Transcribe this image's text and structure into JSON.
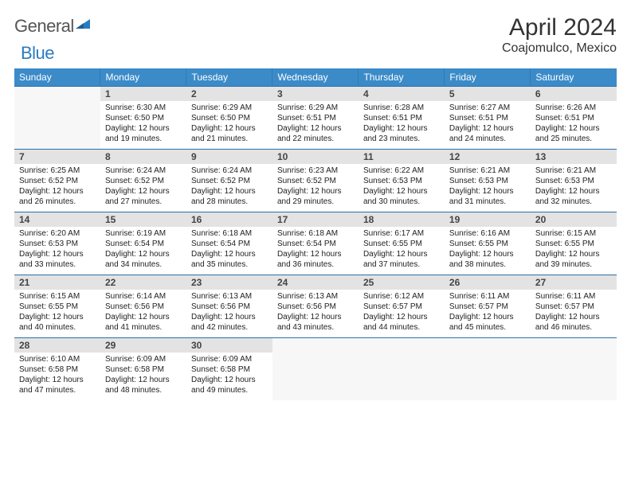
{
  "logo": {
    "general": "General",
    "blue": "Blue"
  },
  "title": "April 2024",
  "location": "Coajomulco, Mexico",
  "colors": {
    "header_bg": "#3b8bc9",
    "header_text": "#ffffff",
    "daynum_bg": "#e3e3e3",
    "row_border": "#2b6fa8",
    "empty_bg": "#f7f7f7",
    "body_text": "#222222"
  },
  "day_headers": [
    "Sunday",
    "Monday",
    "Tuesday",
    "Wednesday",
    "Thursday",
    "Friday",
    "Saturday"
  ],
  "weeks": [
    {
      "nums": [
        "",
        "1",
        "2",
        "3",
        "4",
        "5",
        "6"
      ],
      "cells": [
        null,
        {
          "sr": "Sunrise: 6:30 AM",
          "ss": "Sunset: 6:50 PM",
          "dl1": "Daylight: 12 hours",
          "dl2": "and 19 minutes."
        },
        {
          "sr": "Sunrise: 6:29 AM",
          "ss": "Sunset: 6:50 PM",
          "dl1": "Daylight: 12 hours",
          "dl2": "and 21 minutes."
        },
        {
          "sr": "Sunrise: 6:29 AM",
          "ss": "Sunset: 6:51 PM",
          "dl1": "Daylight: 12 hours",
          "dl2": "and 22 minutes."
        },
        {
          "sr": "Sunrise: 6:28 AM",
          "ss": "Sunset: 6:51 PM",
          "dl1": "Daylight: 12 hours",
          "dl2": "and 23 minutes."
        },
        {
          "sr": "Sunrise: 6:27 AM",
          "ss": "Sunset: 6:51 PM",
          "dl1": "Daylight: 12 hours",
          "dl2": "and 24 minutes."
        },
        {
          "sr": "Sunrise: 6:26 AM",
          "ss": "Sunset: 6:51 PM",
          "dl1": "Daylight: 12 hours",
          "dl2": "and 25 minutes."
        }
      ]
    },
    {
      "nums": [
        "7",
        "8",
        "9",
        "10",
        "11",
        "12",
        "13"
      ],
      "cells": [
        {
          "sr": "Sunrise: 6:25 AM",
          "ss": "Sunset: 6:52 PM",
          "dl1": "Daylight: 12 hours",
          "dl2": "and 26 minutes."
        },
        {
          "sr": "Sunrise: 6:24 AM",
          "ss": "Sunset: 6:52 PM",
          "dl1": "Daylight: 12 hours",
          "dl2": "and 27 minutes."
        },
        {
          "sr": "Sunrise: 6:24 AM",
          "ss": "Sunset: 6:52 PM",
          "dl1": "Daylight: 12 hours",
          "dl2": "and 28 minutes."
        },
        {
          "sr": "Sunrise: 6:23 AM",
          "ss": "Sunset: 6:52 PM",
          "dl1": "Daylight: 12 hours",
          "dl2": "and 29 minutes."
        },
        {
          "sr": "Sunrise: 6:22 AM",
          "ss": "Sunset: 6:53 PM",
          "dl1": "Daylight: 12 hours",
          "dl2": "and 30 minutes."
        },
        {
          "sr": "Sunrise: 6:21 AM",
          "ss": "Sunset: 6:53 PM",
          "dl1": "Daylight: 12 hours",
          "dl2": "and 31 minutes."
        },
        {
          "sr": "Sunrise: 6:21 AM",
          "ss": "Sunset: 6:53 PM",
          "dl1": "Daylight: 12 hours",
          "dl2": "and 32 minutes."
        }
      ]
    },
    {
      "nums": [
        "14",
        "15",
        "16",
        "17",
        "18",
        "19",
        "20"
      ],
      "cells": [
        {
          "sr": "Sunrise: 6:20 AM",
          "ss": "Sunset: 6:53 PM",
          "dl1": "Daylight: 12 hours",
          "dl2": "and 33 minutes."
        },
        {
          "sr": "Sunrise: 6:19 AM",
          "ss": "Sunset: 6:54 PM",
          "dl1": "Daylight: 12 hours",
          "dl2": "and 34 minutes."
        },
        {
          "sr": "Sunrise: 6:18 AM",
          "ss": "Sunset: 6:54 PM",
          "dl1": "Daylight: 12 hours",
          "dl2": "and 35 minutes."
        },
        {
          "sr": "Sunrise: 6:18 AM",
          "ss": "Sunset: 6:54 PM",
          "dl1": "Daylight: 12 hours",
          "dl2": "and 36 minutes."
        },
        {
          "sr": "Sunrise: 6:17 AM",
          "ss": "Sunset: 6:55 PM",
          "dl1": "Daylight: 12 hours",
          "dl2": "and 37 minutes."
        },
        {
          "sr": "Sunrise: 6:16 AM",
          "ss": "Sunset: 6:55 PM",
          "dl1": "Daylight: 12 hours",
          "dl2": "and 38 minutes."
        },
        {
          "sr": "Sunrise: 6:15 AM",
          "ss": "Sunset: 6:55 PM",
          "dl1": "Daylight: 12 hours",
          "dl2": "and 39 minutes."
        }
      ]
    },
    {
      "nums": [
        "21",
        "22",
        "23",
        "24",
        "25",
        "26",
        "27"
      ],
      "cells": [
        {
          "sr": "Sunrise: 6:15 AM",
          "ss": "Sunset: 6:55 PM",
          "dl1": "Daylight: 12 hours",
          "dl2": "and 40 minutes."
        },
        {
          "sr": "Sunrise: 6:14 AM",
          "ss": "Sunset: 6:56 PM",
          "dl1": "Daylight: 12 hours",
          "dl2": "and 41 minutes."
        },
        {
          "sr": "Sunrise: 6:13 AM",
          "ss": "Sunset: 6:56 PM",
          "dl1": "Daylight: 12 hours",
          "dl2": "and 42 minutes."
        },
        {
          "sr": "Sunrise: 6:13 AM",
          "ss": "Sunset: 6:56 PM",
          "dl1": "Daylight: 12 hours",
          "dl2": "and 43 minutes."
        },
        {
          "sr": "Sunrise: 6:12 AM",
          "ss": "Sunset: 6:57 PM",
          "dl1": "Daylight: 12 hours",
          "dl2": "and 44 minutes."
        },
        {
          "sr": "Sunrise: 6:11 AM",
          "ss": "Sunset: 6:57 PM",
          "dl1": "Daylight: 12 hours",
          "dl2": "and 45 minutes."
        },
        {
          "sr": "Sunrise: 6:11 AM",
          "ss": "Sunset: 6:57 PM",
          "dl1": "Daylight: 12 hours",
          "dl2": "and 46 minutes."
        }
      ]
    },
    {
      "nums": [
        "28",
        "29",
        "30",
        "",
        "",
        "",
        ""
      ],
      "cells": [
        {
          "sr": "Sunrise: 6:10 AM",
          "ss": "Sunset: 6:58 PM",
          "dl1": "Daylight: 12 hours",
          "dl2": "and 47 minutes."
        },
        {
          "sr": "Sunrise: 6:09 AM",
          "ss": "Sunset: 6:58 PM",
          "dl1": "Daylight: 12 hours",
          "dl2": "and 48 minutes."
        },
        {
          "sr": "Sunrise: 6:09 AM",
          "ss": "Sunset: 6:58 PM",
          "dl1": "Daylight: 12 hours",
          "dl2": "and 49 minutes."
        },
        null,
        null,
        null,
        null
      ]
    }
  ]
}
